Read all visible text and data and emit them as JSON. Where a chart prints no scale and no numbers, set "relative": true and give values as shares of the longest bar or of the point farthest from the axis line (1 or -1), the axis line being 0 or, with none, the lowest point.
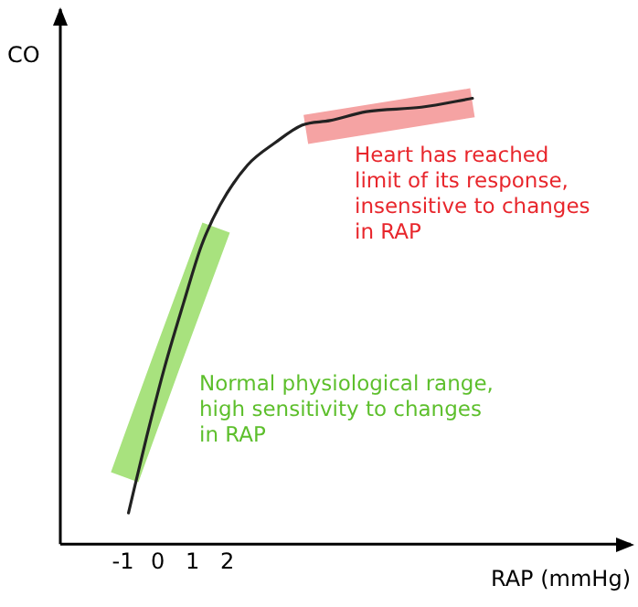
{
  "chart_data": {
    "type": "line",
    "xlabel": "RAP (mmHg)",
    "ylabel": "CO",
    "relative": true,
    "xlim": [
      -2.8,
      13.6
    ],
    "xticks": [
      -1,
      0,
      1,
      2
    ],
    "tick_labels": "x",
    "grid": false,
    "legend": false,
    "marker": "none",
    "line_style": "solid",
    "series": [
      {
        "color": "#a8e27e",
        "x": [
          -0.95,
          0.21,
          1.68
        ],
        "values": [
          0.15,
          0.4,
          0.71
        ]
      },
      {
        "color": "#f5a3a3",
        "x": [
          4.26,
          9.05
        ],
        "values": [
          0.93,
          0.99
        ]
      },
      {
        "color": "#222222",
        "x": [
          -0.84,
          -0.32,
          0.21,
          0.74,
          1.26,
          1.79,
          2.58,
          3.37,
          4.16,
          4.95,
          6.0,
          7.58,
          9.05
        ],
        "values": [
          0.07,
          0.24,
          0.4,
          0.54,
          0.67,
          0.76,
          0.85,
          0.9,
          0.94,
          0.95,
          0.97,
          0.98,
          1.0
        ]
      }
    ],
    "annotations": [
      "Heart has reached\nlimit of its response,\ninsensitive to changes\nin RAP",
      "Normal physiological range,\nhigh sensitivity to changes\nin RAP"
    ]
  }
}
